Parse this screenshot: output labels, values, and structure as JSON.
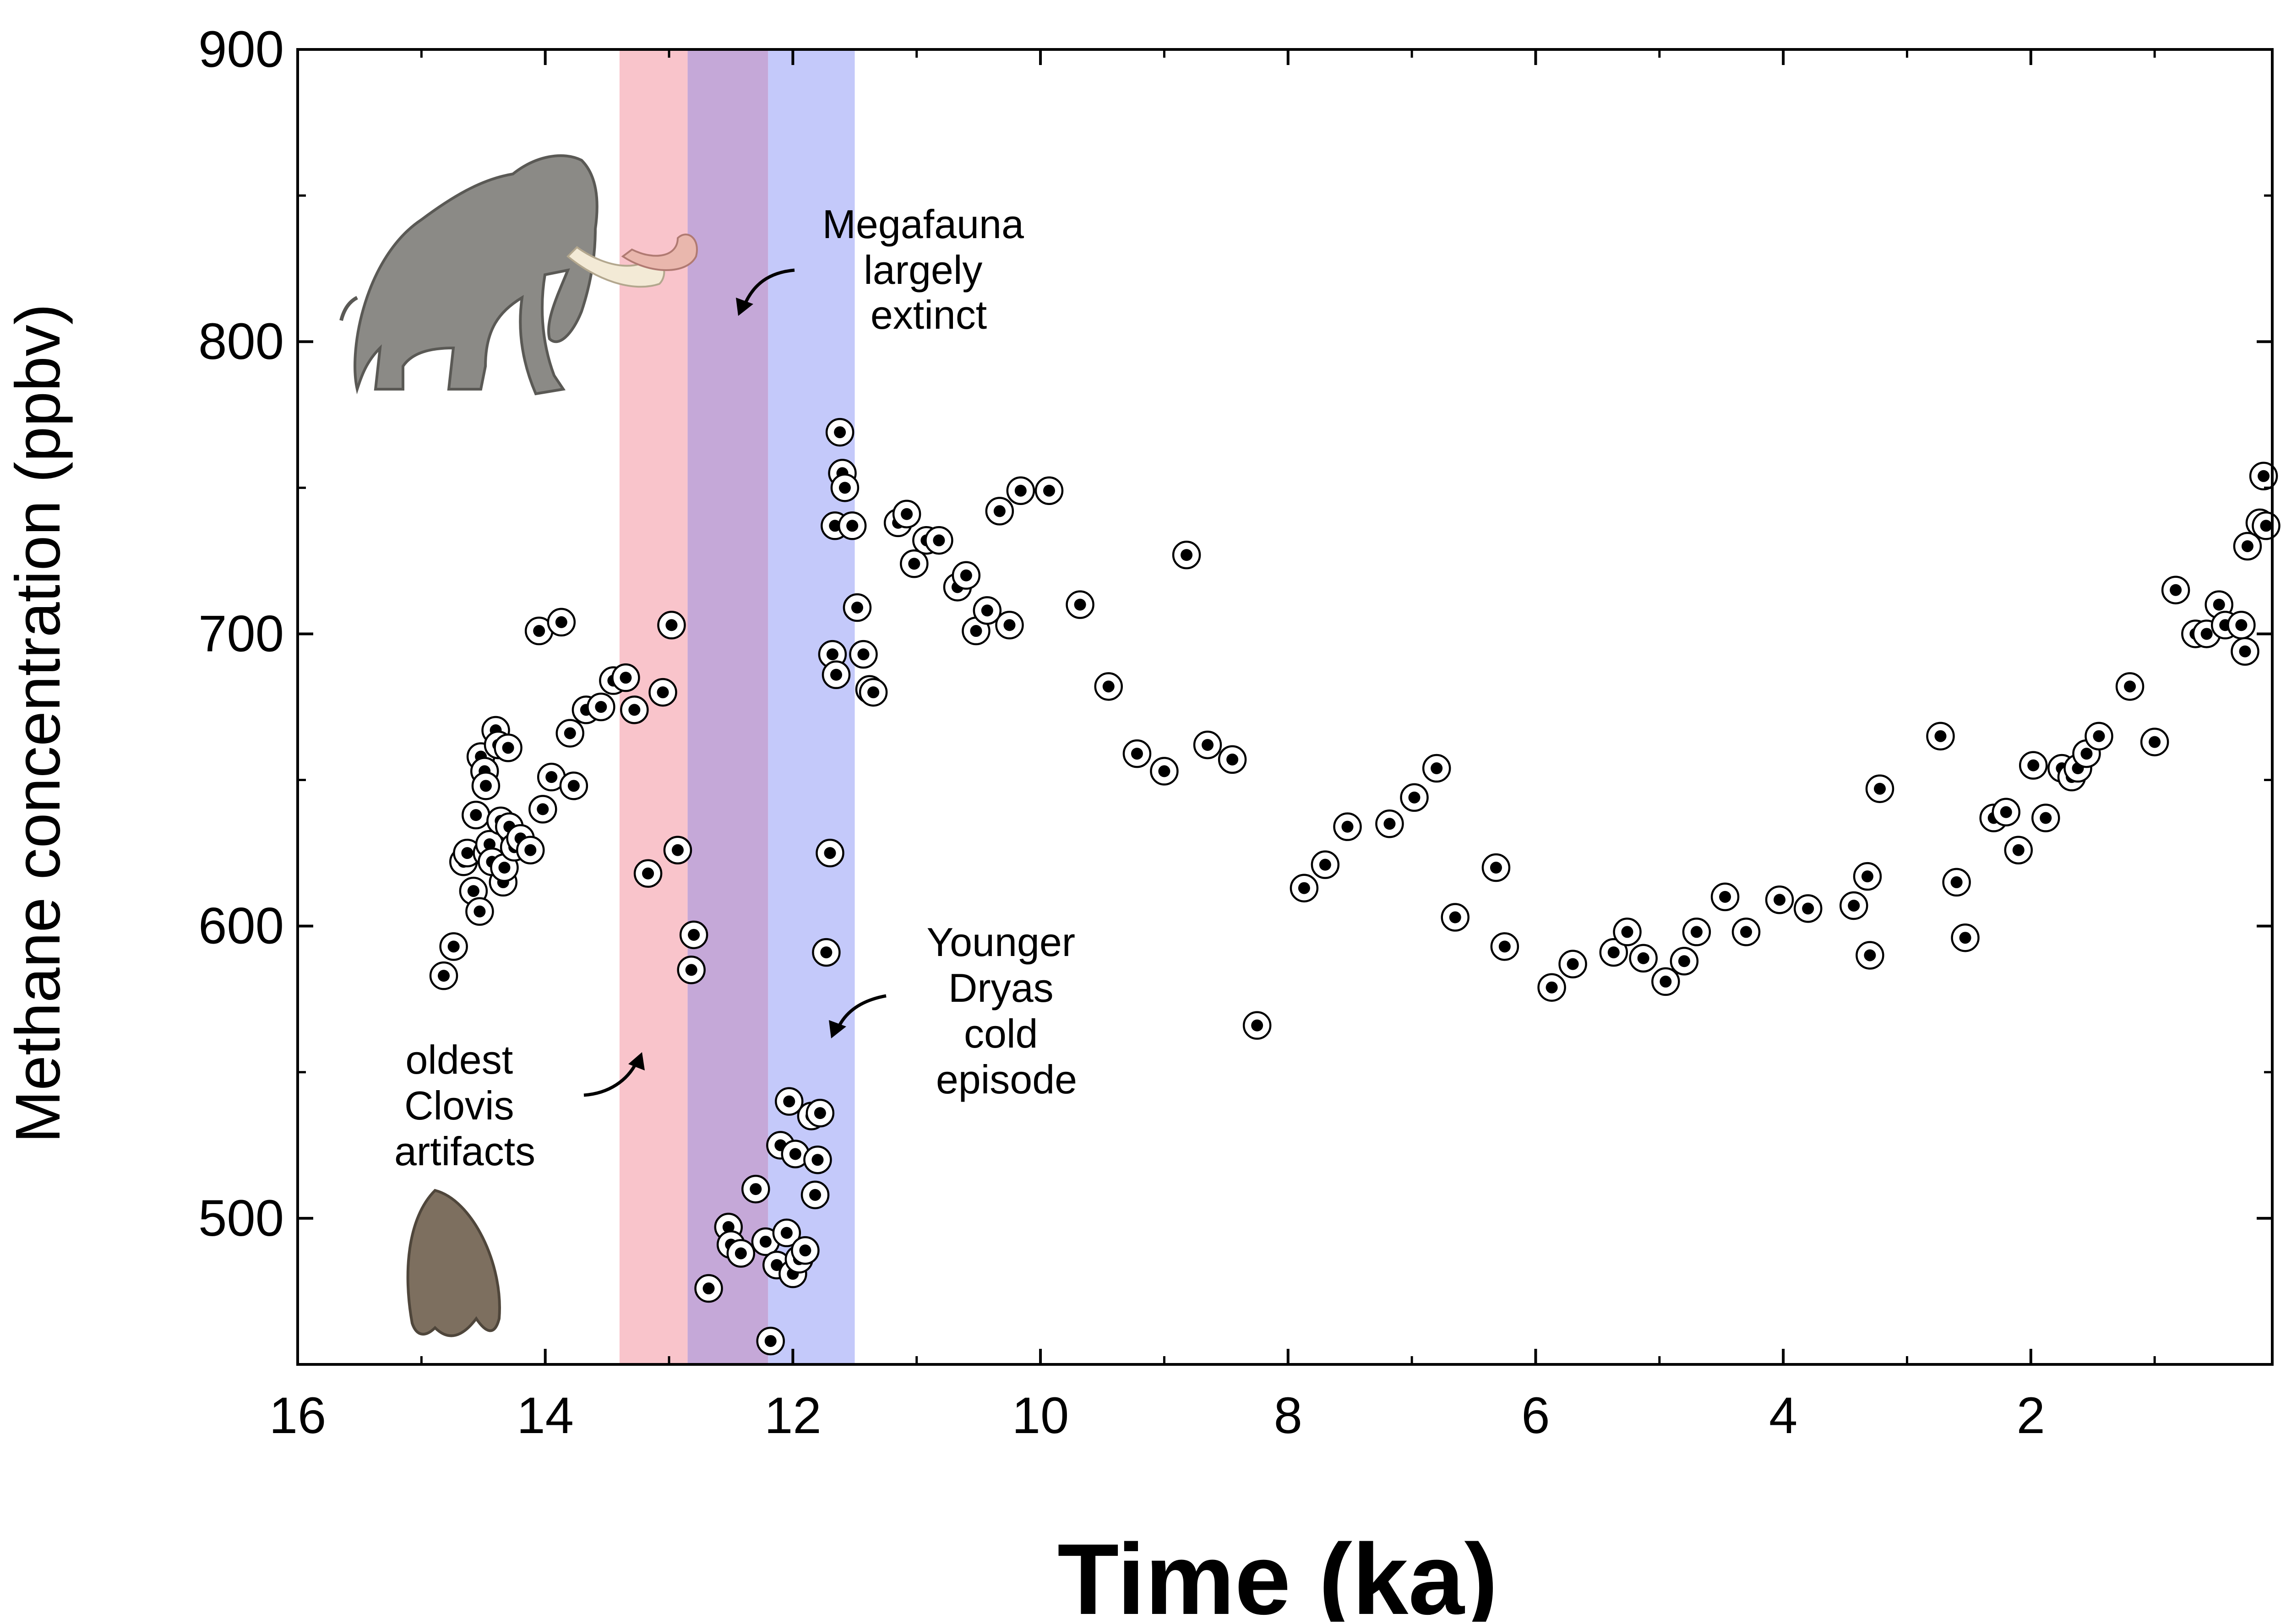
{
  "chart_data": {
    "type": "scatter",
    "xlabel": "Time  (ka)",
    "ylabel": "Methane concentration (ppbv)",
    "xlim": [
      16,
      0.05
    ],
    "ylim": [
      450,
      900
    ],
    "x_ticks": [
      16,
      14,
      12,
      10,
      8,
      6,
      4,
      2
    ],
    "x_tick_labels": [
      "16",
      "14",
      "12",
      "10",
      "8",
      "6",
      "4",
      "2"
    ],
    "y_ticks": [
      500,
      600,
      700,
      800,
      900
    ],
    "y_tick_labels": [
      "500",
      "600",
      "700",
      "800",
      "900"
    ],
    "x_axis_reversed": true,
    "grid": false,
    "bands": [
      {
        "x_start": 13.4,
        "x_end": 12.85,
        "color": "#f9c4cb"
      },
      {
        "x_start": 12.85,
        "x_end": 12.2,
        "color": "#c5a8d8"
      },
      {
        "x_start": 12.2,
        "x_end": 11.5,
        "color": "#c4c9fa"
      }
    ],
    "annotations": [
      {
        "lines": [
          "Megafauna",
          "largely",
          "extinct"
        ]
      },
      {
        "lines": [
          "Younger",
          "Dryas",
          "cold",
          "episode"
        ]
      },
      {
        "lines": [
          "oldest",
          "Clovis",
          "artifacts"
        ]
      }
    ],
    "marker_colors": {
      "fill": "#ffffff",
      "ring": "#000000",
      "dot": "#000000"
    },
    "points": [
      [
        14.82,
        583
      ],
      [
        14.74,
        593
      ],
      [
        14.66,
        622
      ],
      [
        14.63,
        625
      ],
      [
        14.58,
        612
      ],
      [
        14.56,
        638
      ],
      [
        14.53,
        605
      ],
      [
        14.52,
        658
      ],
      [
        14.49,
        653
      ],
      [
        14.48,
        648
      ],
      [
        14.47,
        625
      ],
      [
        14.45,
        628
      ],
      [
        14.43,
        622
      ],
      [
        14.4,
        667
      ],
      [
        14.38,
        662
      ],
      [
        14.36,
        636
      ],
      [
        14.34,
        615
      ],
      [
        14.33,
        620
      ],
      [
        14.3,
        661
      ],
      [
        14.29,
        634
      ],
      [
        14.25,
        627
      ],
      [
        14.2,
        630
      ],
      [
        14.12,
        626
      ],
      [
        14.05,
        701
      ],
      [
        14.02,
        640
      ],
      [
        13.95,
        651
      ],
      [
        13.87,
        704
      ],
      [
        13.8,
        666
      ],
      [
        13.77,
        648
      ],
      [
        13.67,
        674
      ],
      [
        13.55,
        675
      ],
      [
        13.45,
        684
      ],
      [
        13.35,
        685
      ],
      [
        13.28,
        674
      ],
      [
        13.05,
        680
      ],
      [
        12.98,
        703
      ],
      [
        13.17,
        618
      ],
      [
        12.93,
        626
      ],
      [
        12.8,
        597
      ],
      [
        12.82,
        585
      ],
      [
        12.68,
        476
      ],
      [
        12.52,
        497
      ],
      [
        12.5,
        491
      ],
      [
        12.42,
        488
      ],
      [
        12.3,
        510
      ],
      [
        12.22,
        492
      ],
      [
        12.18,
        458
      ],
      [
        12.13,
        484
      ],
      [
        12.1,
        525
      ],
      [
        12.05,
        495
      ],
      [
        12.03,
        540
      ],
      [
        12.0,
        481
      ],
      [
        11.98,
        522
      ],
      [
        11.95,
        486
      ],
      [
        11.9,
        489
      ],
      [
        11.85,
        535
      ],
      [
        11.82,
        508
      ],
      [
        11.8,
        520
      ],
      [
        11.78,
        536
      ],
      [
        11.73,
        591
      ],
      [
        11.7,
        625
      ],
      [
        11.68,
        693
      ],
      [
        11.65,
        686
      ],
      [
        11.66,
        737
      ],
      [
        11.62,
        769
      ],
      [
        11.6,
        755
      ],
      [
        11.58,
        750
      ],
      [
        11.52,
        737
      ],
      [
        11.48,
        709
      ],
      [
        11.43,
        693
      ],
      [
        11.38,
        681
      ],
      [
        11.35,
        680
      ],
      [
        11.15,
        738
      ],
      [
        11.08,
        741
      ],
      [
        11.02,
        724
      ],
      [
        10.92,
        732
      ],
      [
        10.82,
        732
      ],
      [
        10.67,
        716
      ],
      [
        10.6,
        720
      ],
      [
        10.52,
        701
      ],
      [
        10.43,
        708
      ],
      [
        10.33,
        742
      ],
      [
        10.25,
        703
      ],
      [
        10.16,
        749
      ],
      [
        9.93,
        749
      ],
      [
        9.68,
        710
      ],
      [
        9.45,
        682
      ],
      [
        9.22,
        659
      ],
      [
        9.0,
        653
      ],
      [
        8.82,
        727
      ],
      [
        8.65,
        662
      ],
      [
        8.45,
        657
      ],
      [
        8.25,
        566
      ],
      [
        7.87,
        613
      ],
      [
        7.7,
        621
      ],
      [
        7.52,
        634
      ],
      [
        7.18,
        635
      ],
      [
        6.98,
        644
      ],
      [
        6.8,
        654
      ],
      [
        6.65,
        603
      ],
      [
        6.32,
        620
      ],
      [
        6.25,
        593
      ],
      [
        5.87,
        579
      ],
      [
        5.7,
        587
      ],
      [
        5.37,
        591
      ],
      [
        5.26,
        598
      ],
      [
        5.13,
        589
      ],
      [
        4.95,
        581
      ],
      [
        4.8,
        588
      ],
      [
        4.7,
        598
      ],
      [
        4.47,
        610
      ],
      [
        4.3,
        598
      ],
      [
        4.03,
        609
      ],
      [
        3.8,
        606
      ],
      [
        3.43,
        607
      ],
      [
        3.32,
        617
      ],
      [
        3.3,
        590
      ],
      [
        3.22,
        647
      ],
      [
        2.73,
        665
      ],
      [
        2.6,
        615
      ],
      [
        2.53,
        596
      ],
      [
        2.3,
        637
      ],
      [
        2.2,
        639
      ],
      [
        2.1,
        626
      ],
      [
        1.98,
        655
      ],
      [
        1.88,
        637
      ],
      [
        1.75,
        654
      ],
      [
        1.67,
        651
      ],
      [
        1.62,
        654
      ],
      [
        1.55,
        659
      ],
      [
        1.45,
        665
      ],
      [
        1.2,
        682
      ],
      [
        1.0,
        663
      ],
      [
        0.83,
        715
      ],
      [
        0.67,
        700
      ],
      [
        0.58,
        700
      ],
      [
        0.48,
        710
      ],
      [
        0.43,
        703
      ],
      [
        0.3,
        703
      ],
      [
        0.27,
        694
      ],
      [
        0.25,
        730
      ],
      [
        0.15,
        738
      ],
      [
        0.12,
        754
      ],
      [
        0.1,
        737
      ]
    ]
  }
}
